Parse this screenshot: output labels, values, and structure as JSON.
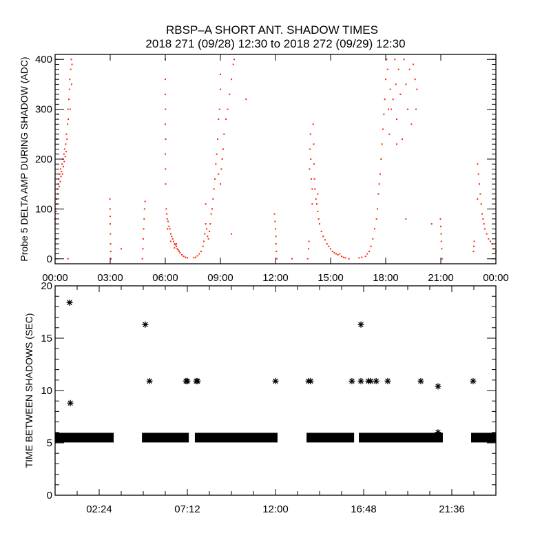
{
  "title": {
    "line1": "RBSP–A SHORT ANT. SHADOW TIMES",
    "line2": "2018 271 (09/28) 12:30 to 2018 272 (09/29) 12:30"
  },
  "colors": {
    "points": "#ff2200",
    "stars": "#000000",
    "axes": "#000000"
  },
  "chart_data": [
    {
      "type": "scatter",
      "ylabel": "Probe 5 DELTA AMP DURING SHADOW (ADC)",
      "xlabel": "",
      "xlim": [
        0,
        24
      ],
      "ylim": [
        -10,
        410
      ],
      "x_unit": "hours",
      "xticks": [
        {
          "value": 0,
          "label": "00:00"
        },
        {
          "value": 3,
          "label": "03:00"
        },
        {
          "value": 6,
          "label": "06:00"
        },
        {
          "value": 9,
          "label": "09:00"
        },
        {
          "value": 12,
          "label": "12:00"
        },
        {
          "value": 15,
          "label": "15:00"
        },
        {
          "value": 18,
          "label": "18:00"
        },
        {
          "value": 21,
          "label": "21:00"
        },
        {
          "value": 24,
          "label": "00:00"
        }
      ],
      "yticks": [
        {
          "value": 0,
          "label": "0"
        },
        {
          "value": 100,
          "label": "100"
        },
        {
          "value": 200,
          "label": "200"
        },
        {
          "value": 300,
          "label": "300"
        },
        {
          "value": 400,
          "label": "400"
        }
      ],
      "y_minor_step": 10,
      "grid": false,
      "points": [
        [
          0.0,
          80
        ],
        [
          0.02,
          100
        ],
        [
          0.05,
          95
        ],
        [
          0.08,
          120
        ],
        [
          0.1,
          110
        ],
        [
          0.12,
          140
        ],
        [
          0.15,
          130
        ],
        [
          0.18,
          150
        ],
        [
          0.2,
          160
        ],
        [
          0.22,
          145
        ],
        [
          0.25,
          170
        ],
        [
          0.28,
          155
        ],
        [
          0.3,
          180
        ],
        [
          0.32,
          165
        ],
        [
          0.35,
          175
        ],
        [
          0.38,
          190
        ],
        [
          0.4,
          170
        ],
        [
          0.42,
          200
        ],
        [
          0.45,
          185
        ],
        [
          0.48,
          210
        ],
        [
          0.5,
          195
        ],
        [
          0.52,
          220
        ],
        [
          0.55,
          205
        ],
        [
          0.58,
          230
        ],
        [
          0.6,
          215
        ],
        [
          0.62,
          250
        ],
        [
          0.65,
          240
        ],
        [
          0.68,
          270
        ],
        [
          0.7,
          300
        ],
        [
          0.72,
          280
        ],
        [
          0.75,
          320
        ],
        [
          0.78,
          340
        ],
        [
          0.8,
          360
        ],
        [
          0.82,
          300
        ],
        [
          0.85,
          380
        ],
        [
          0.88,
          400
        ],
        [
          0.9,
          350
        ],
        [
          0.92,
          390
        ],
        [
          0.1,
          240
        ],
        [
          0.15,
          290
        ],
        [
          0.05,
          40
        ],
        [
          0.7,
          0
        ],
        [
          2.98,
          120
        ],
        [
          2.99,
          100
        ],
        [
          3.0,
          85
        ],
        [
          3.0,
          70
        ],
        [
          3.01,
          50
        ],
        [
          3.02,
          30
        ],
        [
          3.03,
          15
        ],
        [
          3.04,
          0
        ],
        [
          3.6,
          20
        ],
        [
          4.75,
          0
        ],
        [
          4.78,
          20
        ],
        [
          4.8,
          40
        ],
        [
          4.82,
          60
        ],
        [
          4.85,
          80
        ],
        [
          4.87,
          100
        ],
        [
          4.9,
          115
        ],
        [
          6.0,
          400
        ],
        [
          6.0,
          360
        ],
        [
          6.0,
          330
        ],
        [
          6.01,
          300
        ],
        [
          6.0,
          270
        ],
        [
          6.02,
          240
        ],
        [
          6.0,
          210
        ],
        [
          6.01,
          180
        ],
        [
          6.02,
          150
        ],
        [
          6.05,
          100
        ],
        [
          6.08,
          90
        ],
        [
          6.1,
          80
        ],
        [
          6.15,
          75
        ],
        [
          6.2,
          65
        ],
        [
          6.25,
          60
        ],
        [
          6.3,
          50
        ],
        [
          6.35,
          45
        ],
        [
          6.4,
          40
        ],
        [
          6.45,
          35
        ],
        [
          6.5,
          30
        ],
        [
          6.55,
          28
        ],
        [
          6.6,
          25
        ],
        [
          6.65,
          20
        ],
        [
          6.7,
          18
        ],
        [
          6.75,
          15
        ],
        [
          6.8,
          12
        ],
        [
          6.9,
          8
        ],
        [
          7.0,
          5
        ],
        [
          7.1,
          3
        ],
        [
          7.2,
          2
        ],
        [
          6.12,
          60
        ],
        [
          6.3,
          35
        ],
        [
          6.5,
          22
        ],
        [
          6.6,
          30
        ],
        [
          7.55,
          2
        ],
        [
          7.65,
          3
        ],
        [
          7.75,
          6
        ],
        [
          7.85,
          10
        ],
        [
          7.95,
          15
        ],
        [
          8.05,
          25
        ],
        [
          8.1,
          35
        ],
        [
          8.15,
          50
        ],
        [
          8.2,
          70
        ],
        [
          8.25,
          60
        ],
        [
          8.3,
          45
        ],
        [
          8.35,
          40
        ],
        [
          8.4,
          55
        ],
        [
          8.45,
          70
        ],
        [
          8.5,
          90
        ],
        [
          8.55,
          100
        ],
        [
          8.6,
          120
        ],
        [
          8.65,
          140
        ],
        [
          8.7,
          160
        ],
        [
          8.75,
          190
        ],
        [
          8.8,
          210
        ],
        [
          8.85,
          240
        ],
        [
          8.9,
          280
        ],
        [
          8.95,
          300
        ],
        [
          8.9,
          170
        ],
        [
          9.0,
          150
        ],
        [
          9.05,
          180
        ],
        [
          9.1,
          200
        ],
        [
          9.15,
          220
        ],
        [
          9.2,
          250
        ],
        [
          9.3,
          280
        ],
        [
          9.4,
          300
        ],
        [
          9.5,
          330
        ],
        [
          9.6,
          360
        ],
        [
          9.7,
          390
        ],
        [
          9.75,
          400
        ],
        [
          9.0,
          340
        ],
        [
          9.0,
          370
        ],
        [
          10.4,
          320
        ],
        [
          9.6,
          50
        ],
        [
          8.2,
          110
        ],
        [
          11.95,
          90
        ],
        [
          11.98,
          75
        ],
        [
          12.0,
          60
        ],
        [
          12.02,
          45
        ],
        [
          12.03,
          30
        ],
        [
          12.05,
          15
        ],
        [
          12.07,
          0
        ],
        [
          12.9,
          0
        ],
        [
          13.75,
          0
        ],
        [
          13.8,
          20
        ],
        [
          13.82,
          35
        ],
        [
          13.85,
          180
        ],
        [
          13.88,
          220
        ],
        [
          13.9,
          250
        ],
        [
          13.92,
          200
        ],
        [
          13.95,
          160
        ],
        [
          14.0,
          140
        ],
        [
          14.05,
          270
        ],
        [
          14.08,
          230
        ],
        [
          14.1,
          190
        ],
        [
          14.12,
          160
        ],
        [
          14.15,
          140
        ],
        [
          14.2,
          120
        ],
        [
          14.25,
          110
        ],
        [
          14.3,
          95
        ],
        [
          14.35,
          80
        ],
        [
          14.4,
          70
        ],
        [
          14.5,
          55
        ],
        [
          14.6,
          45
        ],
        [
          14.7,
          38
        ],
        [
          14.8,
          30
        ],
        [
          14.9,
          25
        ],
        [
          15.0,
          20
        ],
        [
          15.1,
          15
        ],
        [
          15.2,
          12
        ],
        [
          15.3,
          10
        ],
        [
          15.4,
          8
        ],
        [
          15.5,
          10
        ],
        [
          15.6,
          5
        ],
        [
          15.7,
          3
        ],
        [
          15.8,
          2
        ],
        [
          16.0,
          0
        ],
        [
          14.0,
          110
        ],
        [
          14.3,
          130
        ],
        [
          16.55,
          2
        ],
        [
          16.7,
          3
        ],
        [
          16.9,
          5
        ],
        [
          17.0,
          10
        ],
        [
          17.1,
          15
        ],
        [
          17.2,
          25
        ],
        [
          17.3,
          40
        ],
        [
          17.4,
          60
        ],
        [
          17.5,
          80
        ],
        [
          17.55,
          100
        ],
        [
          17.6,
          130
        ],
        [
          17.65,
          150
        ],
        [
          17.7,
          170
        ],
        [
          17.75,
          200
        ],
        [
          17.8,
          230
        ],
        [
          17.85,
          260
        ],
        [
          17.9,
          290
        ],
        [
          17.95,
          320
        ],
        [
          18.0,
          360
        ],
        [
          18.05,
          400
        ],
        [
          18.1,
          380
        ],
        [
          18.15,
          300
        ],
        [
          18.2,
          250
        ],
        [
          18.25,
          340
        ],
        [
          18.3,
          300
        ],
        [
          18.4,
          320
        ],
        [
          18.5,
          400
        ],
        [
          18.55,
          350
        ],
        [
          18.6,
          280
        ],
        [
          18.7,
          380
        ],
        [
          18.8,
          330
        ],
        [
          18.9,
          240
        ],
        [
          19.0,
          400
        ],
        [
          19.1,
          350
        ],
        [
          19.2,
          300
        ],
        [
          19.3,
          380
        ],
        [
          19.4,
          270
        ],
        [
          19.5,
          390
        ],
        [
          19.6,
          360
        ],
        [
          19.65,
          300
        ],
        [
          19.7,
          340
        ],
        [
          18.6,
          230
        ],
        [
          19.1,
          80
        ],
        [
          20.98,
          80
        ],
        [
          21.0,
          65
        ],
        [
          21.02,
          50
        ],
        [
          21.03,
          35
        ],
        [
          21.05,
          20
        ],
        [
          21.07,
          0
        ],
        [
          20.5,
          70
        ],
        [
          22.78,
          15
        ],
        [
          22.8,
          25
        ],
        [
          22.82,
          35
        ],
        [
          23.0,
          190
        ],
        [
          23.05,
          170
        ],
        [
          23.1,
          150
        ],
        [
          23.0,
          120
        ],
        [
          23.15,
          130
        ],
        [
          23.2,
          110
        ],
        [
          23.25,
          90
        ],
        [
          23.3,
          80
        ],
        [
          23.35,
          70
        ],
        [
          23.4,
          60
        ],
        [
          23.5,
          50
        ],
        [
          23.6,
          40
        ],
        [
          23.7,
          35
        ],
        [
          23.8,
          30
        ],
        [
          23.9,
          20
        ],
        [
          24.0,
          15
        ]
      ]
    },
    {
      "type": "scatter",
      "ylabel": "TIME BETWEEN SHADOWS (SEC)",
      "xlabel": "",
      "xlim": [
        0,
        24
      ],
      "ylim": [
        0,
        20
      ],
      "x_unit": "hours",
      "xticks": [
        {
          "value": 2.4,
          "label": "02:24"
        },
        {
          "value": 7.2,
          "label": "07:12"
        },
        {
          "value": 12,
          "label": "12:00"
        },
        {
          "value": 16.8,
          "label": "16:48"
        },
        {
          "value": 21.6,
          "label": "21:36"
        }
      ],
      "x_minor_step": 1.2,
      "yticks": [
        {
          "value": 0,
          "label": "0"
        },
        {
          "value": 5,
          "label": "5"
        },
        {
          "value": 10,
          "label": "10"
        },
        {
          "value": 15,
          "label": "15"
        },
        {
          "value": 20,
          "label": "20"
        }
      ],
      "y_minor_step": 1,
      "grid": false,
      "marker": "asterisk",
      "dense_runs": [
        {
          "x_start": 0.0,
          "x_end": 3.19,
          "y": 5.5
        },
        {
          "x_start": 4.73,
          "x_end": 7.28,
          "y": 5.5
        },
        {
          "x_start": 7.61,
          "x_end": 12.11,
          "y": 5.5
        },
        {
          "x_start": 13.69,
          "x_end": 16.28,
          "y": 5.5
        },
        {
          "x_start": 16.54,
          "x_end": 21.11,
          "y": 5.5
        },
        {
          "x_start": 22.65,
          "x_end": 24.0,
          "y": 5.5
        }
      ],
      "points": [
        [
          0.79,
          18.4
        ],
        [
          0.83,
          8.8
        ],
        [
          4.91,
          16.3
        ],
        [
          5.14,
          10.9
        ],
        [
          7.13,
          10.9
        ],
        [
          7.2,
          10.9
        ],
        [
          7.69,
          10.9
        ],
        [
          7.76,
          10.9
        ],
        [
          12.0,
          10.9
        ],
        [
          13.8,
          10.9
        ],
        [
          13.91,
          10.9
        ],
        [
          16.16,
          10.9
        ],
        [
          16.65,
          16.3
        ],
        [
          16.65,
          10.9
        ],
        [
          17.06,
          10.9
        ],
        [
          17.18,
          10.9
        ],
        [
          17.48,
          10.9
        ],
        [
          18.11,
          10.9
        ],
        [
          19.91,
          10.9
        ],
        [
          20.85,
          10.4
        ],
        [
          20.85,
          6.0
        ],
        [
          22.76,
          10.9
        ]
      ]
    }
  ]
}
